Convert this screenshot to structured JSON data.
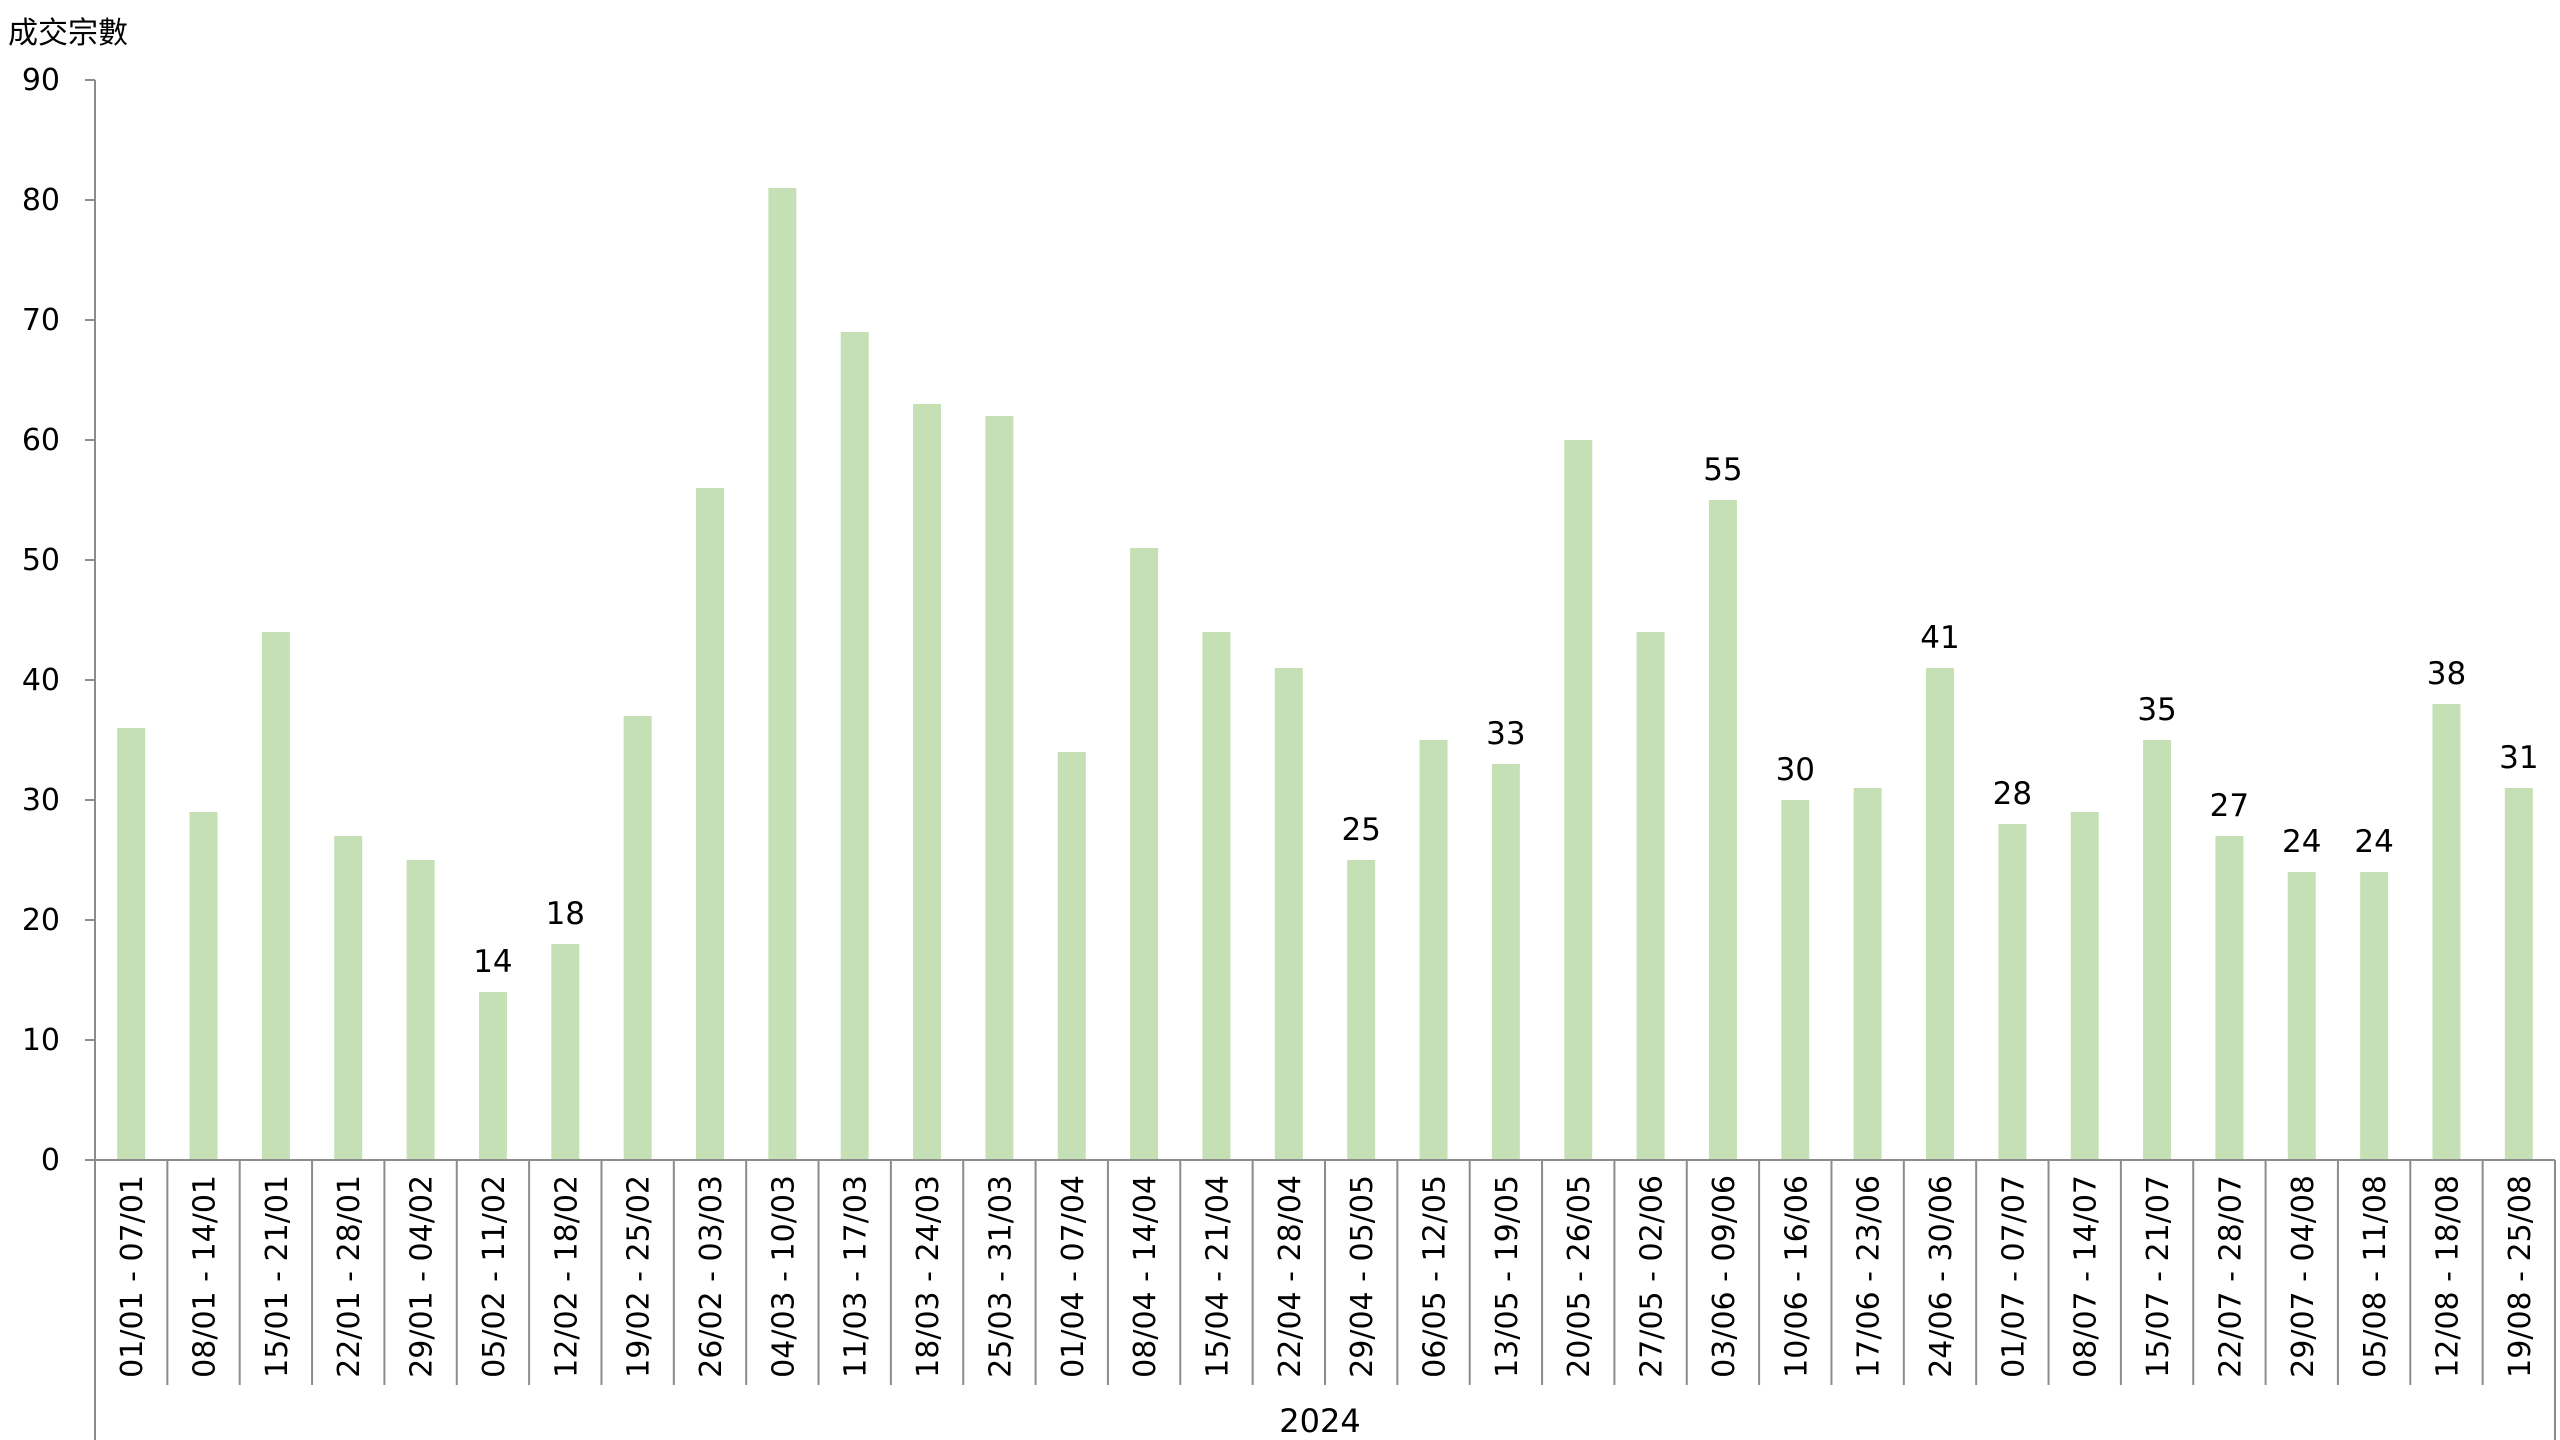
{
  "chart_data": {
    "type": "bar",
    "ylabel": "成交宗數",
    "group_label": "2024",
    "ylim": [
      0,
      90
    ],
    "yticks": [
      0,
      10,
      20,
      30,
      40,
      50,
      60,
      70,
      80,
      90
    ],
    "grid": false,
    "bar_color": "#c5e0b4",
    "axis_color": "#8c8c8c",
    "categories": [
      "01/01 - 07/01",
      "08/01 - 14/01",
      "15/01 - 21/01",
      "22/01 - 28/01",
      "29/01 - 04/02",
      "05/02 - 11/02",
      "12/02 - 18/02",
      "19/02 - 25/02",
      "26/02 - 03/03",
      "04/03 - 10/03",
      "11/03 - 17/03",
      "18/03 - 24/03",
      "25/03 - 31/03",
      "01/04 - 07/04",
      "08/04 - 14/04",
      "15/04 - 21/04",
      "22/04 - 28/04",
      "29/04 - 05/05",
      "06/05 - 12/05",
      "13/05 - 19/05",
      "20/05 - 26/05",
      "27/05 - 02/06",
      "03/06 - 09/06",
      "10/06 - 16/06",
      "17/06 - 23/06",
      "24/06 - 30/06",
      "01/07 - 07/07",
      "08/07 - 14/07",
      "15/07 - 21/07",
      "22/07 - 28/07",
      "29/07 - 04/08",
      "05/08 - 11/08",
      "12/08 - 18/08",
      "19/08 - 25/08"
    ],
    "values": [
      36,
      29,
      44,
      27,
      25,
      14,
      18,
      37,
      56,
      81,
      69,
      63,
      62,
      34,
      51,
      44,
      41,
      25,
      35,
      33,
      60,
      44,
      55,
      30,
      31,
      41,
      28,
      29,
      35,
      27,
      24,
      24,
      38,
      31
    ],
    "data_labels": [
      "",
      "",
      "",
      "",
      "",
      "14",
      "18",
      "",
      "",
      "",
      "",
      "",
      "",
      "",
      "",
      "",
      "",
      "25",
      "",
      "33",
      "",
      "",
      "55",
      "30",
      "",
      "41",
      "28",
      "",
      "35",
      "27",
      "24",
      "24",
      "38",
      "31"
    ]
  }
}
